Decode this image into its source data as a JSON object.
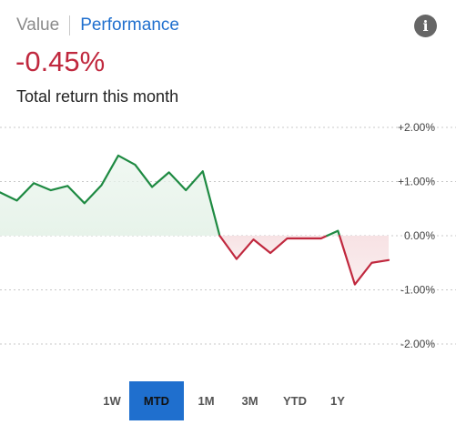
{
  "header": {
    "value_tab": "Value",
    "performance_tab": "Performance",
    "active_tab": "Performance",
    "info_icon_name": "info-icon",
    "info_glyph": "i"
  },
  "summary": {
    "return_value": "-0.45%",
    "caption": "Total return this month"
  },
  "colors": {
    "positive": "#1e8a42",
    "negative": "#c0283e",
    "accent": "#1f6fce",
    "positive_fill": "#e7f3ea",
    "negative_fill": "#f7e2e4",
    "gridline": "#c8c8c8",
    "icon": "#666666"
  },
  "range_buttons": [
    {
      "label": "1W",
      "selected": false
    },
    {
      "label": "MTD",
      "selected": true
    },
    {
      "label": "1M",
      "selected": false
    },
    {
      "label": "3M",
      "selected": false
    },
    {
      "label": "YTD",
      "selected": false
    },
    {
      "label": "1Y",
      "selected": false
    }
  ],
  "chart_data": {
    "type": "area",
    "title": "",
    "xlabel": "",
    "ylabel": "",
    "ylim": [
      -2.0,
      2.0
    ],
    "y_ticks": [
      {
        "value": 2.0,
        "label": "+2.00%"
      },
      {
        "value": 1.0,
        "label": "+1.00%"
      },
      {
        "value": 0.0,
        "label": "0.00%"
      },
      {
        "value": -1.0,
        "label": "-1.00%"
      },
      {
        "value": -2.0,
        "label": "-2.00%"
      }
    ],
    "grid": true,
    "baseline": 0.0,
    "values": [
      0.8,
      0.65,
      0.97,
      0.84,
      0.92,
      0.6,
      0.93,
      1.48,
      1.31,
      0.9,
      1.17,
      0.84,
      1.19,
      0.0,
      -0.43,
      -0.07,
      -0.32,
      -0.05,
      -0.05,
      -0.05,
      0.09,
      -0.9,
      -0.5,
      -0.45
    ]
  }
}
